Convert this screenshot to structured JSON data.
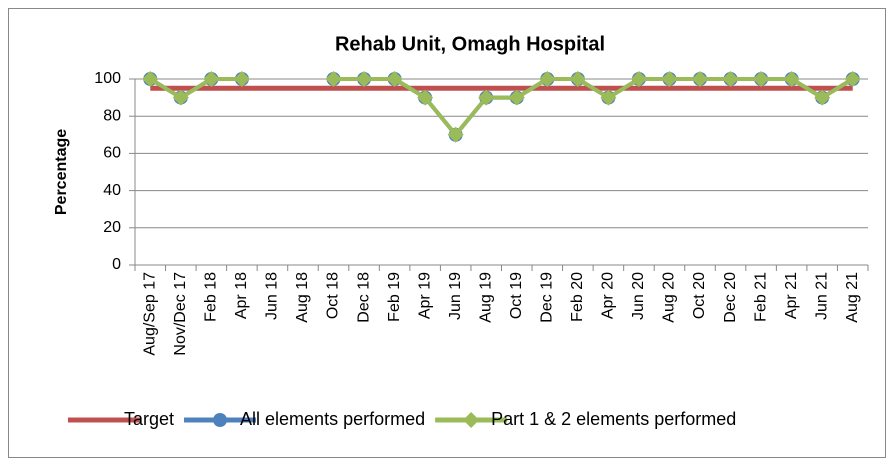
{
  "chart_data": {
    "type": "line",
    "title": "Rehab Unit, Omagh Hospital",
    "y_label": "Percentage",
    "categories": [
      "Aug/Sep 17",
      "Nov/Dec 17",
      "Feb 18",
      "Apr 18",
      "Jun 18",
      "Aug 18",
      "Oct 18",
      "Dec 18",
      "Feb 19",
      "Apr 19",
      "Jun 19",
      "Aug 19",
      "Oct 19",
      "Dec 19",
      "Feb 20",
      "Apr 20",
      "Jun 20",
      "Aug 20",
      "Oct 20",
      "Dec 20",
      "Feb 21",
      "Apr 21",
      "Jun 21",
      "Aug 21"
    ],
    "series": [
      {
        "name": "Target",
        "color": "#c0504d",
        "marker": "none",
        "values": [
          95,
          95,
          95,
          95,
          95,
          95,
          95,
          95,
          95,
          95,
          95,
          95,
          95,
          95,
          95,
          95,
          95,
          95,
          95,
          95,
          95,
          95,
          95,
          95
        ]
      },
      {
        "name": "All elements performed",
        "color": "#4f81bd",
        "marker": "circle",
        "values": [
          100,
          90,
          100,
          100,
          null,
          null,
          100,
          100,
          100,
          90,
          70,
          90,
          90,
          100,
          100,
          90,
          100,
          100,
          100,
          100,
          100,
          100,
          90,
          100
        ]
      },
      {
        "name": "Part 1 & 2 elements performed",
        "color": "#9bbb59",
        "marker": "diamond",
        "values": [
          100,
          90,
          100,
          100,
          null,
          null,
          100,
          100,
          100,
          90,
          70,
          90,
          90,
          100,
          100,
          90,
          100,
          100,
          100,
          100,
          100,
          100,
          90,
          100
        ]
      }
    ],
    "ylim": [
      0,
      100
    ],
    "yticks": [
      0,
      20,
      40,
      60,
      80,
      100
    ],
    "grid": true,
    "legend": "bottom"
  }
}
